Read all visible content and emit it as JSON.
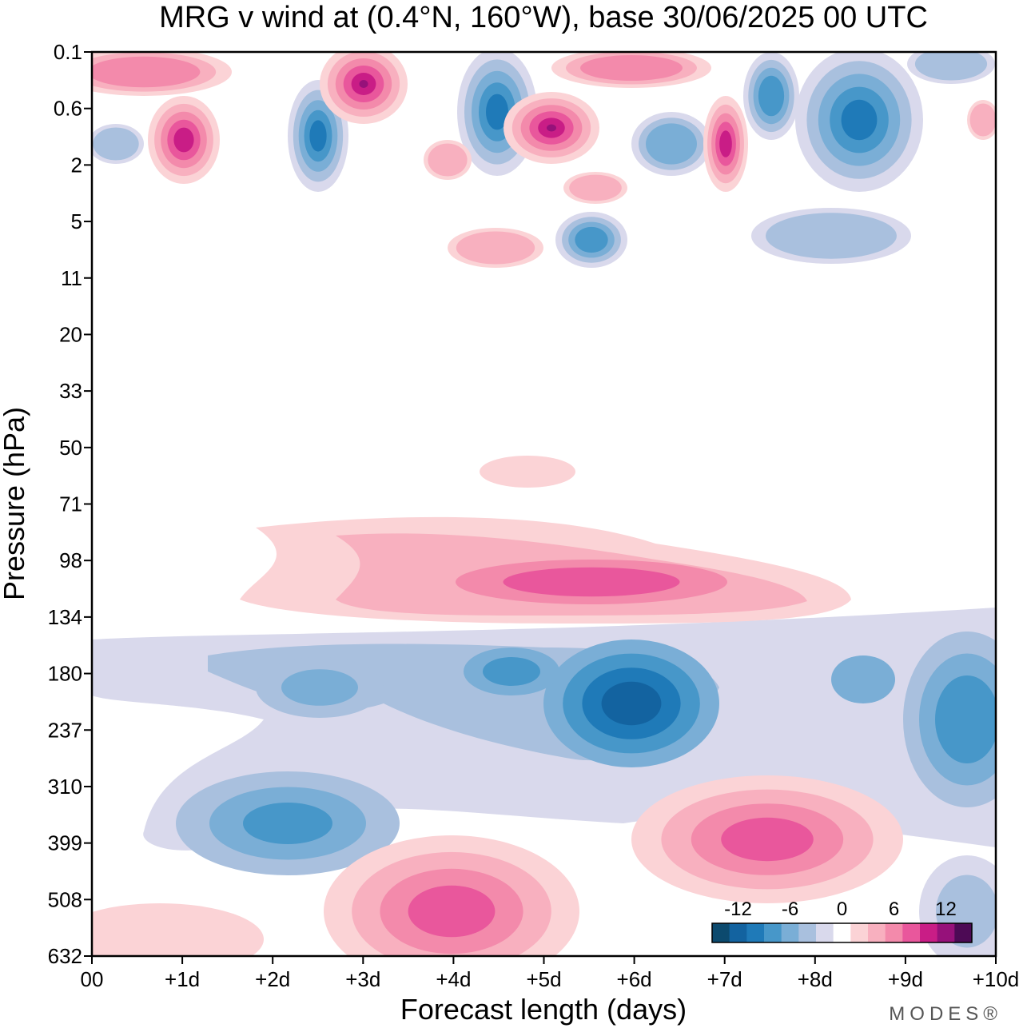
{
  "chart_data": {
    "type": "contour",
    "title": "MRG v wind at (0.4°N, 160°W),  base 30/06/2025  00 UTC",
    "xlabel": "Forecast length (days)",
    "ylabel": "Pressure (hPa)",
    "x_ticks": [
      "00",
      "+1d",
      "+2d",
      "+3d",
      "+4d",
      "+5d",
      "+6d",
      "+7d",
      "+8d",
      "+9d",
      "+10d"
    ],
    "xlim": [
      0,
      10
    ],
    "y_ticks": [
      "0.1",
      "0.6",
      "2",
      "5",
      "11",
      "20",
      "33",
      "50",
      "71",
      "98",
      "134",
      "180",
      "237",
      "310",
      "399",
      "508",
      "632"
    ],
    "y_scale": "log",
    "colorbar": {
      "tick_labels": [
        "-12",
        "-6",
        "0",
        "6",
        "12"
      ],
      "levels": [
        -14,
        -12,
        -10,
        -8,
        -6,
        -4,
        -2,
        0,
        2,
        4,
        6,
        8,
        10,
        12,
        14
      ],
      "colors": [
        "#0c4a6e",
        "#1363a0",
        "#1f7ab8",
        "#4797c9",
        "#7aaed6",
        "#a9c0de",
        "#d9d9ec",
        "#ffffff",
        "#fbd3d6",
        "#f8b0bf",
        "#f38aab",
        "#e9579c",
        "#c91d86",
        "#96117a",
        "#4d0a55"
      ]
    },
    "features": [
      {
        "name": "Upper-tropospheric negative (northerly) band",
        "x_range": [
          1,
          10
        ],
        "p_range": [
          160,
          330
        ],
        "min_value": -13
      },
      {
        "name": "Lower-tropospheric positive lobe near day 4",
        "x_range": [
          3,
          6
        ],
        "p_range": [
          420,
          632
        ],
        "max_value": 9
      },
      {
        "name": "Lower-tropospheric positive lobe near day 8",
        "x_range": [
          6,
          9
        ],
        "p_range": [
          330,
          500
        ],
        "max_value": 11
      },
      {
        "name": "Lower-stratospheric positive band",
        "x_range": [
          2,
          8.5
        ],
        "p_range": [
          70,
          140
        ],
        "max_value": 9
      },
      {
        "name": "Upper-stratospheric alternating extrema",
        "x_range": [
          0,
          10
        ],
        "p_range": [
          0.1,
          5
        ],
        "min_value": -14,
        "max_value": 14
      }
    ]
  },
  "watermark": "MODES®"
}
